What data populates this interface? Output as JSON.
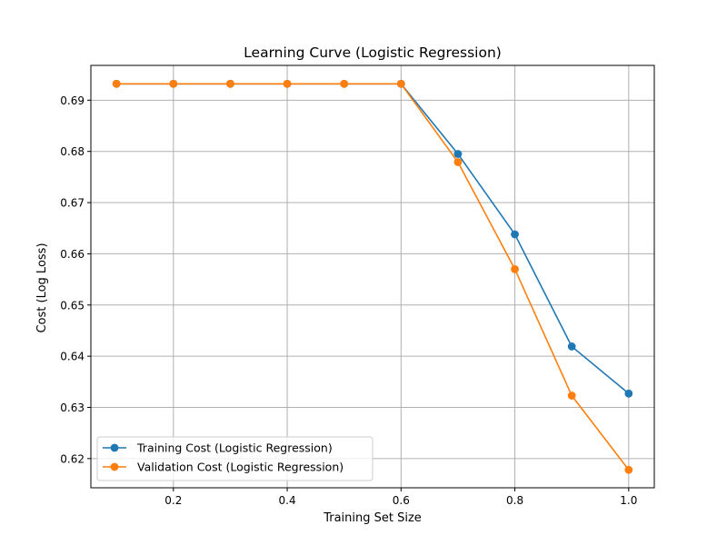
{
  "chart_data": {
    "type": "line",
    "title": "Learning Curve (Logistic Regression)",
    "xlabel": "Training Set Size",
    "ylabel": "Cost (Log Loss)",
    "x": [
      0.1,
      0.2,
      0.3,
      0.4,
      0.5,
      0.6,
      0.7,
      0.8,
      0.9,
      1.0
    ],
    "xlim": [
      0.055,
      1.045
    ],
    "ylim": [
      0.6143,
      0.6968
    ],
    "xticks": [
      0.2,
      0.4,
      0.6,
      0.8,
      1.0
    ],
    "xtick_labels": [
      "0.2",
      "0.4",
      "0.6",
      "0.8",
      "1.0"
    ],
    "yticks": [
      0.62,
      0.63,
      0.64,
      0.65,
      0.66,
      0.67,
      0.68,
      0.69
    ],
    "ytick_labels": [
      "0.62",
      "0.63",
      "0.64",
      "0.65",
      "0.66",
      "0.67",
      "0.68",
      "0.69"
    ],
    "grid": true,
    "legend_position": "lower-left",
    "series": [
      {
        "name": "Training Cost (Logistic Regression)",
        "color": "#1f77b4",
        "values": [
          0.6932,
          0.6932,
          0.6932,
          0.6932,
          0.6932,
          0.6932,
          0.6795,
          0.6638,
          0.6419,
          0.6327
        ]
      },
      {
        "name": "Validation Cost (Logistic Regression)",
        "color": "#ff7f0e",
        "values": [
          0.6932,
          0.6932,
          0.6932,
          0.6932,
          0.6932,
          0.6932,
          0.6779,
          0.657,
          0.6323,
          0.6178
        ]
      }
    ]
  }
}
